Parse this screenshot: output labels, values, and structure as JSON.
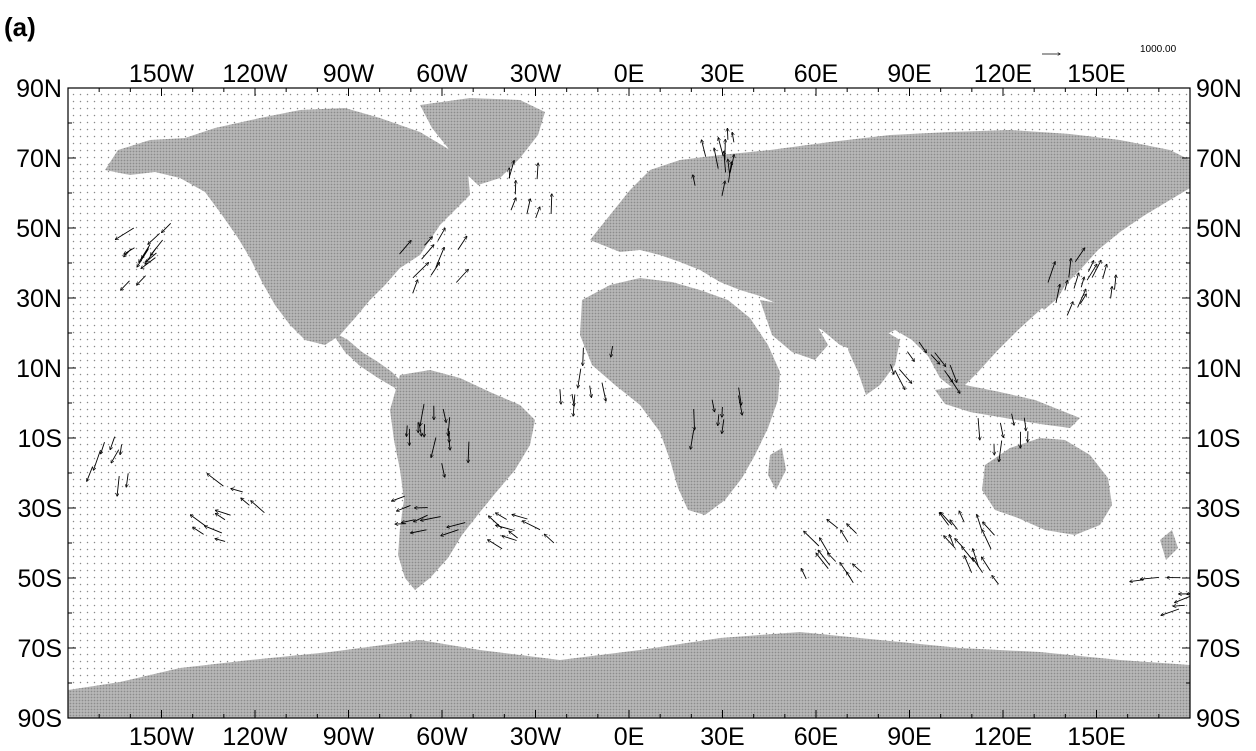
{
  "figure": {
    "panel_label": "(a)",
    "reference_vector_label": "1000.00"
  },
  "map": {
    "projection": "cylindrical-equidistant",
    "lon_range": [
      -180,
      180
    ],
    "lat_range": [
      -90,
      90
    ],
    "land_pattern": "dense stippled gray",
    "ocean_pattern": "sparse dotted grid",
    "land_color": "#a9a9a9",
    "ocean_color": "#ffffff",
    "vector_color": "#000000"
  },
  "axes": {
    "x_ticks": [
      {
        "value": -150,
        "label": "150W"
      },
      {
        "value": -120,
        "label": "120W"
      },
      {
        "value": -90,
        "label": "90W"
      },
      {
        "value": -60,
        "label": "60W"
      },
      {
        "value": -30,
        "label": "30W"
      },
      {
        "value": 0,
        "label": "0E"
      },
      {
        "value": 30,
        "label": "30E"
      },
      {
        "value": 60,
        "label": "60E"
      },
      {
        "value": 90,
        "label": "90E"
      },
      {
        "value": 120,
        "label": "120E"
      },
      {
        "value": 150,
        "label": "150E"
      }
    ],
    "y_ticks": [
      {
        "value": 90,
        "label": "90N"
      },
      {
        "value": 70,
        "label": "70N"
      },
      {
        "value": 50,
        "label": "50N"
      },
      {
        "value": 30,
        "label": "30N"
      },
      {
        "value": 10,
        "label": "10N"
      },
      {
        "value": -10,
        "label": "10S"
      },
      {
        "value": -30,
        "label": "30S"
      },
      {
        "value": -50,
        "label": "50S"
      },
      {
        "value": -70,
        "label": "70S"
      },
      {
        "value": -90,
        "label": "90S"
      }
    ]
  },
  "vector_clusters": [
    {
      "name": "north-pacific-gulf-of-alaska",
      "lon": -152,
      "lat": 43,
      "dir_deg": 225,
      "count": 14
    },
    {
      "name": "north-atlantic-east-of-newfoundland",
      "lon": -63,
      "lat": 39,
      "dir_deg": 35,
      "count": 10
    },
    {
      "name": "north-atlantic-central",
      "lon": -30,
      "lat": 57,
      "dir_deg": 10,
      "count": 8
    },
    {
      "name": "arctic-siberia-coast",
      "lon": 30,
      "lat": 67,
      "dir_deg": 0,
      "count": 12
    },
    {
      "name": "northwest-pacific-east-of-japan",
      "lon": 145,
      "lat": 32,
      "dir_deg": 20,
      "count": 16
    },
    {
      "name": "bay-of-bengal",
      "lon": 93,
      "lat": 12,
      "dir_deg": 150,
      "count": 10
    },
    {
      "name": "western-pacific-tropics",
      "lon": 120,
      "lat": -7,
      "dir_deg": 180,
      "count": 8
    },
    {
      "name": "amazon-basin",
      "lon": -60,
      "lat": -8,
      "dir_deg": 180,
      "count": 14
    },
    {
      "name": "south-america-andes-east",
      "lon": -62,
      "lat": -34,
      "dir_deg": 260,
      "count": 10
    },
    {
      "name": "south-atlantic-west",
      "lon": -35,
      "lat": -38,
      "dir_deg": 300,
      "count": 9
    },
    {
      "name": "south-pacific-east",
      "lon": -125,
      "lat": -33,
      "dir_deg": 300,
      "count": 10
    },
    {
      "name": "south-indian-ocean",
      "lon": 65,
      "lat": -45,
      "dir_deg": 320,
      "count": 12
    },
    {
      "name": "south-indian-ocean-east",
      "lon": 110,
      "lat": -42,
      "dir_deg": 330,
      "count": 16
    },
    {
      "name": "central-africa",
      "lon": 30,
      "lat": -5,
      "dir_deg": 180,
      "count": 8
    },
    {
      "name": "tropical-atlantic",
      "lon": -15,
      "lat": 8,
      "dir_deg": 180,
      "count": 8
    },
    {
      "name": "southeast-pacific-near-dateline",
      "lon": 175,
      "lat": -55,
      "dir_deg": 260,
      "count": 8
    },
    {
      "name": "southwest-pacific-tropics",
      "lon": -170,
      "lat": -17,
      "dir_deg": 200,
      "count": 8
    }
  ]
}
